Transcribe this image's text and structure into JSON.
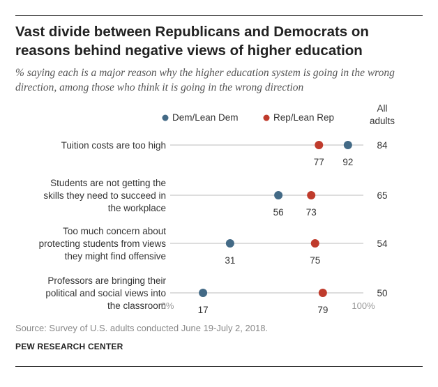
{
  "title": "Vast divide between Republicans and Democrats on reasons behind negative views of higher education",
  "subtitle": "% saying each is a major reason why the higher education system is going in the wrong direction, among those who think it is going in the wrong direction",
  "source": "Source: Survey of U.S. adults conducted June 19-July 2, 2018.",
  "credit": "PEW RESEARCH CENTER",
  "colors": {
    "dem": "#436a86",
    "rep": "#bf3b2c",
    "line": "#bbbbbb",
    "text": "#333333"
  },
  "chart_data": {
    "type": "dot",
    "legend": [
      "Dem/Lean Dem",
      "Rep/Lean Rep"
    ],
    "total_header": [
      "All",
      "adults"
    ],
    "axis_labels": [
      "0%",
      "100%"
    ],
    "xlim": [
      0,
      100
    ],
    "categories": [
      [
        "Tuition costs are too high"
      ],
      [
        "Students are not getting the",
        "skills they need to succeed in",
        "the workplace"
      ],
      [
        "Too much concern about",
        "protecting students from views",
        "they might find offensive"
      ],
      [
        "Professors are bringing their",
        "political and social views into",
        "the classroom"
      ]
    ],
    "series": [
      {
        "name": "Dem/Lean Dem",
        "values": [
          92,
          56,
          31,
          17
        ]
      },
      {
        "name": "Rep/Lean Rep",
        "values": [
          77,
          73,
          75,
          79
        ]
      }
    ],
    "all_adults": [
      84,
      65,
      54,
      50
    ]
  }
}
